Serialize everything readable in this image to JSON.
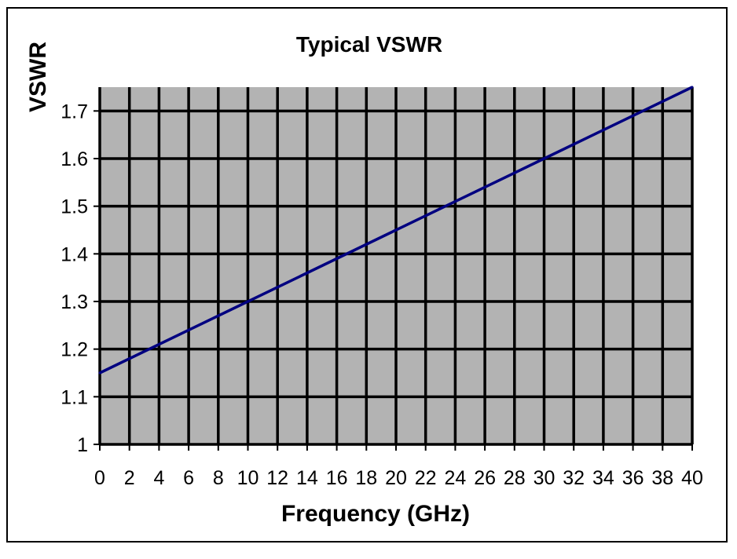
{
  "chart_data": {
    "type": "line",
    "title": "Typical VSWR",
    "xlabel": "Frequency (GHz)",
    "ylabel": "VSWR",
    "xlim": [
      0,
      40
    ],
    "ylim": [
      1,
      1.75
    ],
    "x_ticks": [
      "0",
      "2",
      "4",
      "6",
      "8",
      "10",
      "12",
      "14",
      "16",
      "18",
      "20",
      "22",
      "24",
      "26",
      "28",
      "30",
      "32",
      "34",
      "36",
      "38",
      "40"
    ],
    "y_ticks": [
      "1",
      "1.1",
      "1.2",
      "1.3",
      "1.4",
      "1.5",
      "1.6",
      "1.7"
    ],
    "grid": true,
    "colors": {
      "plot_background": "#b3b3b3",
      "grid": "#000000",
      "line": "#000080"
    },
    "series": [
      {
        "x": [
          0,
          10,
          20,
          30,
          40
        ],
        "values": [
          1.15,
          1.3,
          1.45,
          1.6,
          1.75
        ]
      }
    ]
  }
}
